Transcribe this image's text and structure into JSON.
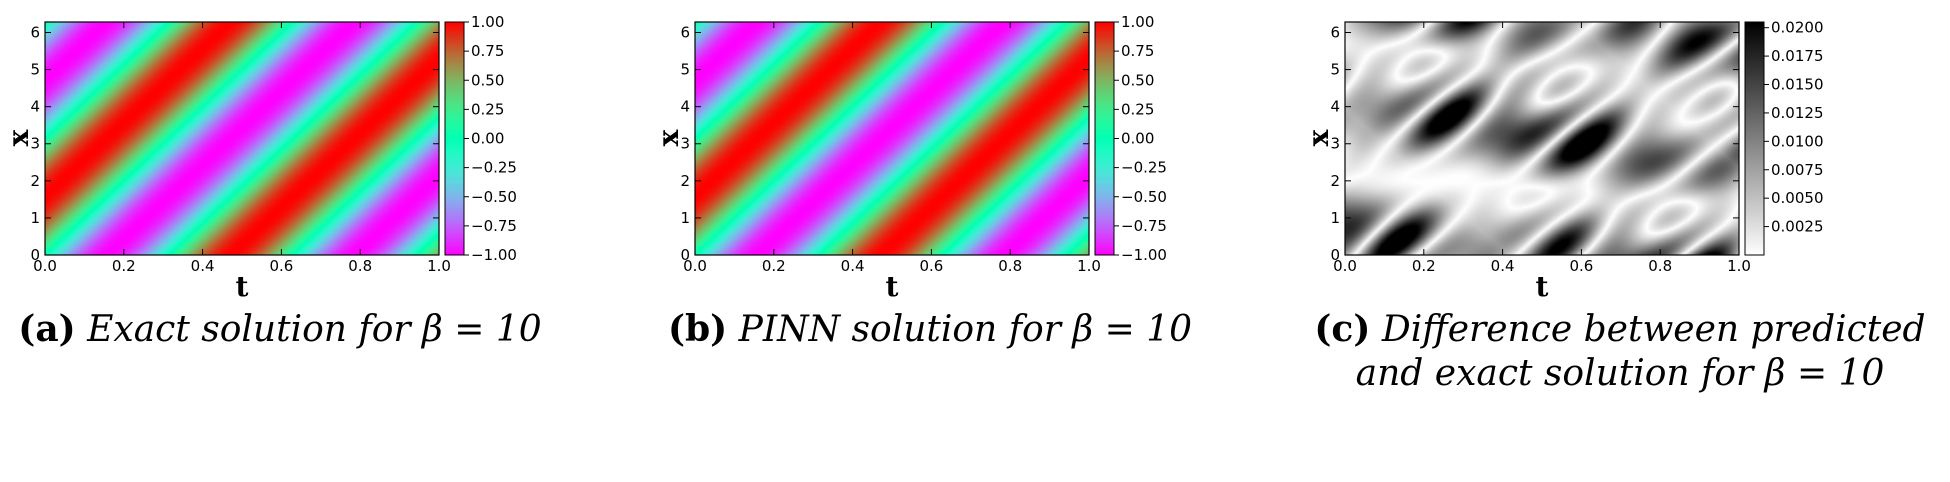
{
  "chart_data": [
    {
      "type": "heatmap",
      "xlabel": "t",
      "ylabel": "x",
      "xlim": [
        0.0,
        1.0
      ],
      "ylim": [
        0,
        6.283
      ],
      "x_ticks": [
        "0.0",
        "0.2",
        "0.4",
        "0.6",
        "0.8",
        "1.0"
      ],
      "y_ticks": [
        "0",
        "1",
        "2",
        "3",
        "4",
        "5",
        "6"
      ],
      "function": "sin(x - beta*t)",
      "beta": 10,
      "colormap": "rainbow",
      "colorbar": {
        "min": -1.0,
        "max": 1.0,
        "ticks": [
          "1.00",
          "0.75",
          "0.50",
          "0.25",
          "0.00",
          "−0.25",
          "−0.50",
          "−0.75",
          "−1.00"
        ]
      },
      "caption": {
        "letter": "(a)",
        "text_lines": [
          "Exact solution for β = 10"
        ]
      }
    },
    {
      "type": "heatmap",
      "xlabel": "t",
      "ylabel": "x",
      "xlim": [
        0.0,
        1.0
      ],
      "ylim": [
        0,
        6.283
      ],
      "x_ticks": [
        "0.0",
        "0.2",
        "0.4",
        "0.6",
        "0.8",
        "1.0"
      ],
      "y_ticks": [
        "0",
        "1",
        "2",
        "3",
        "4",
        "5",
        "6"
      ],
      "function": "sin(x - beta*t)",
      "beta": 10,
      "colormap": "rainbow",
      "colorbar": {
        "min": -1.0,
        "max": 1.0,
        "ticks": [
          "1.00",
          "0.75",
          "0.50",
          "0.25",
          "0.00",
          "−0.25",
          "−0.50",
          "−0.75",
          "−1.00"
        ]
      },
      "caption": {
        "letter": "(b)",
        "text_lines": [
          "PINN solution for β = 10"
        ]
      }
    },
    {
      "type": "heatmap",
      "xlabel": "t",
      "ylabel": "x",
      "xlim": [
        0.0,
        1.0
      ],
      "ylim": [
        0,
        6.283
      ],
      "x_ticks": [
        "0.0",
        "0.2",
        "0.4",
        "0.6",
        "0.8",
        "1.0"
      ],
      "y_ticks": [
        "0",
        "1",
        "2",
        "3",
        "4",
        "5",
        "6"
      ],
      "function": "abs(predicted - exact)",
      "colormap": "gray_r",
      "colorbar": {
        "min": 0.0,
        "max": 0.0205,
        "ticks": [
          "0.0200",
          "0.0175",
          "0.0150",
          "0.0125",
          "0.0100",
          "0.0075",
          "0.0050",
          "0.0025"
        ],
        "tick_values": [
          0.02,
          0.0175,
          0.015,
          0.0125,
          0.01,
          0.0075,
          0.005,
          0.0025
        ]
      },
      "caption": {
        "letter": "(c)",
        "text_lines": [
          "Difference between predicted",
          "and exact solution for β = 10"
        ]
      }
    }
  ]
}
